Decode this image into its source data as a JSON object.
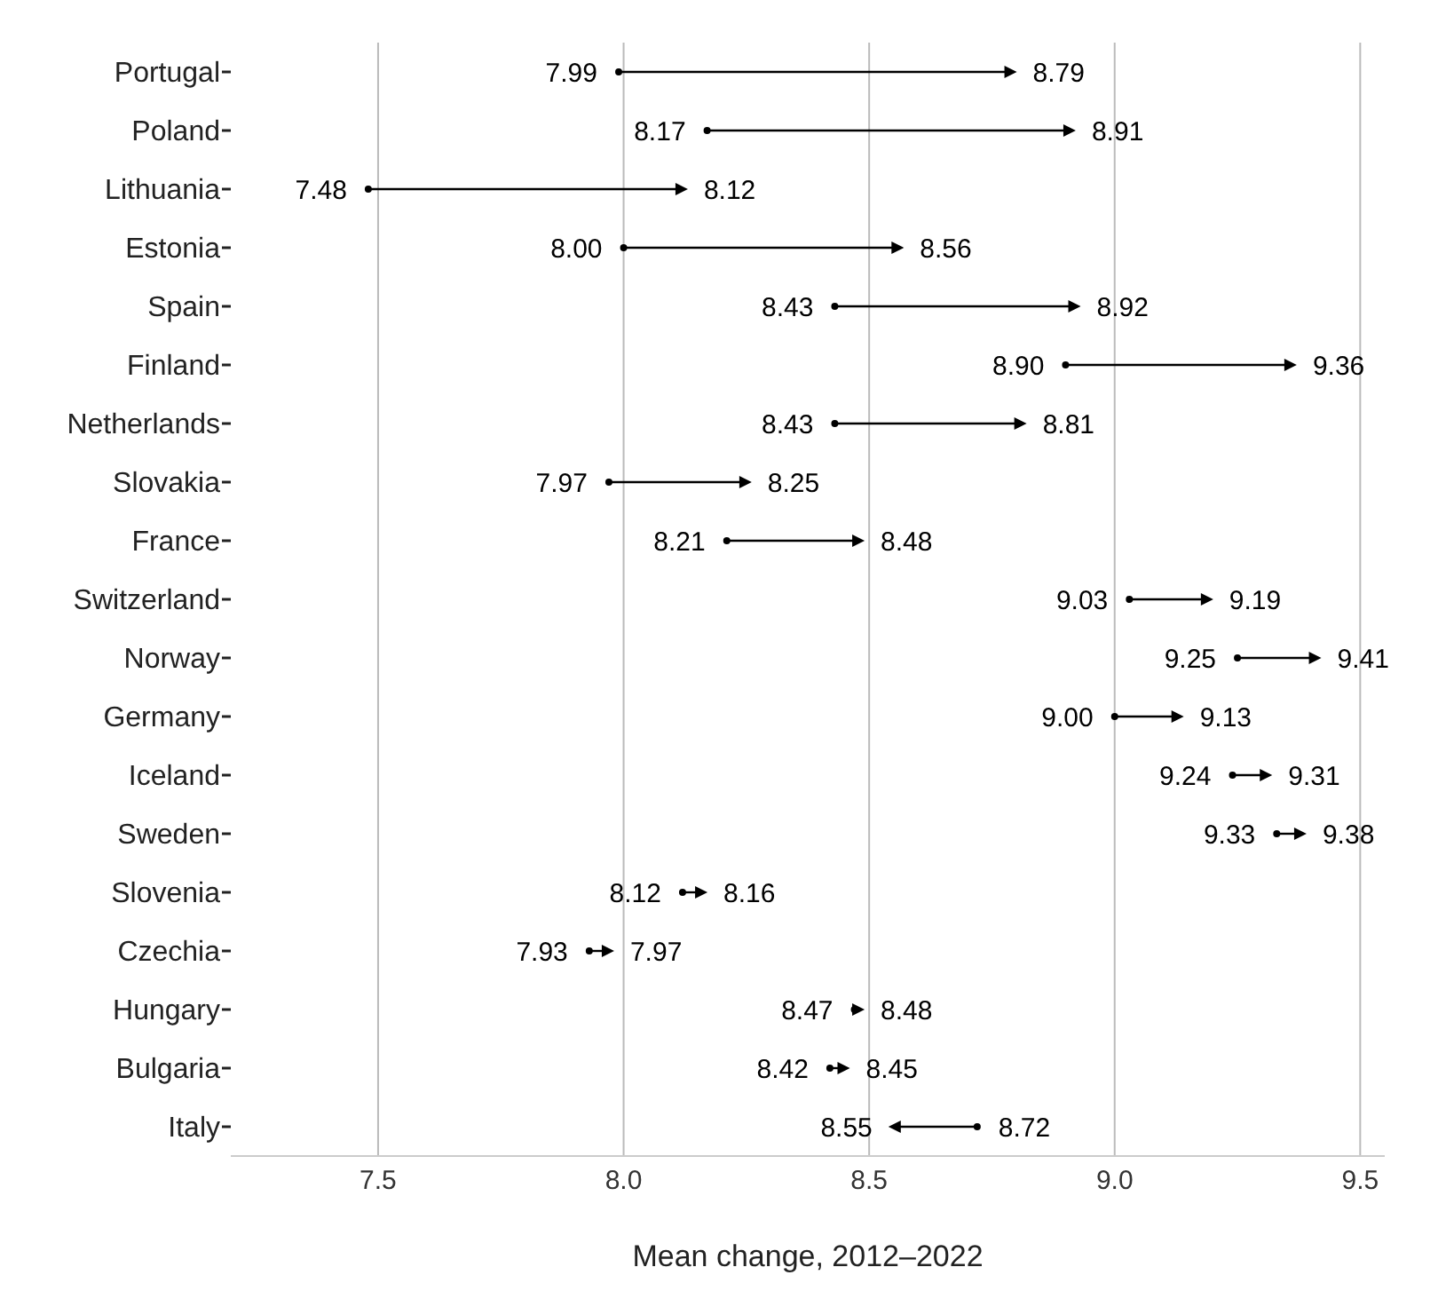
{
  "chart_data": {
    "type": "scatter",
    "orientation": "horizontal",
    "xlabel": "Mean change, 2012–2022",
    "categories": [
      "Portugal",
      "Poland",
      "Lithuania",
      "Estonia",
      "Spain",
      "Finland",
      "Netherlands",
      "Slovakia",
      "France",
      "Switzerland",
      "Norway",
      "Germany",
      "Iceland",
      "Sweden",
      "Slovenia",
      "Czechia",
      "Hungary",
      "Bulgaria",
      "Italy"
    ],
    "series": [
      {
        "color": "#000000",
        "marker": "circle",
        "values": [
          7.99,
          8.17,
          7.48,
          8.0,
          8.43,
          8.9,
          8.43,
          7.97,
          8.21,
          9.03,
          9.25,
          9.0,
          9.24,
          9.33,
          8.12,
          7.93,
          8.47,
          8.42,
          8.72
        ],
        "value_labels": [
          "7.99",
          "8.17",
          "7.48",
          "8.00",
          "8.43",
          "8.90",
          "8.43",
          "7.97",
          "8.21",
          "9.03",
          "9.25",
          "9.00",
          "9.24",
          "9.33",
          "8.12",
          "7.93",
          "8.47",
          "8.42",
          "8.72"
        ]
      },
      {
        "color": "#000000",
        "marker": "triangle",
        "values": [
          8.79,
          8.91,
          8.12,
          8.56,
          8.92,
          9.36,
          8.81,
          8.25,
          8.48,
          9.19,
          9.41,
          9.13,
          9.31,
          9.38,
          8.16,
          7.97,
          8.48,
          8.45,
          8.55
        ],
        "value_labels": [
          "8.79",
          "8.91",
          "8.12",
          "8.56",
          "8.92",
          "9.36",
          "8.81",
          "8.25",
          "8.48",
          "9.19",
          "9.41",
          "9.13",
          "9.31",
          "9.38",
          "8.16",
          "7.97",
          "8.48",
          "8.45",
          "8.55"
        ]
      }
    ],
    "xlim": [
      7.2,
      9.55
    ],
    "xticks": [
      7.5,
      {
        "value": 8,
        "label": "8.0"
      },
      8.5,
      {
        "value": 9,
        "label": "9.0"
      },
      9.5
    ],
    "grid": "x"
  }
}
